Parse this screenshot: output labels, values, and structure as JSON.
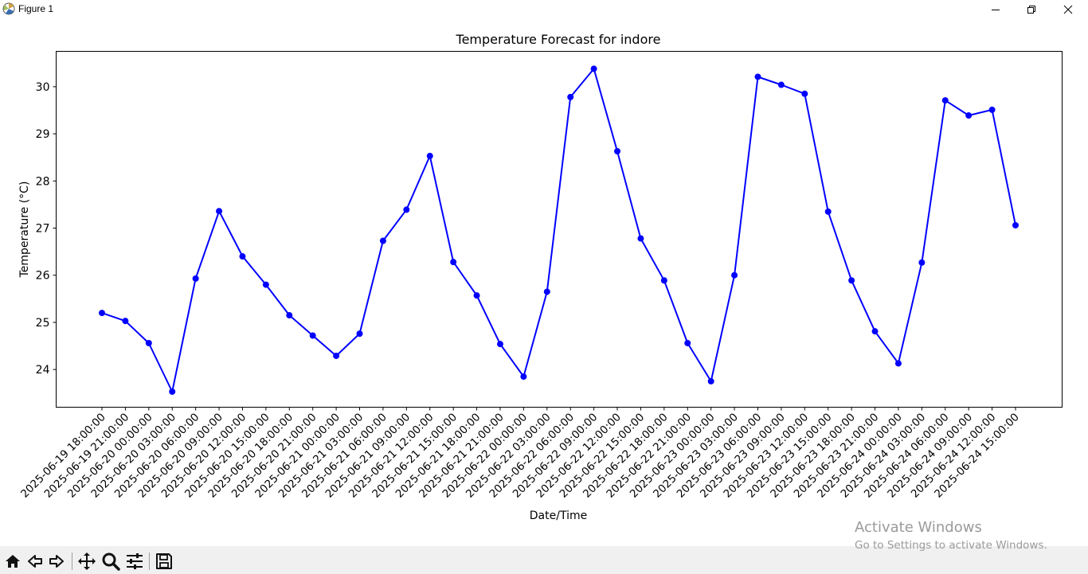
{
  "window": {
    "title": "Figure 1"
  },
  "chart_data": {
    "type": "line",
    "title": "Temperature Forecast for indore",
    "xlabel": "Date/Time",
    "ylabel": "Temperature (°C)",
    "x": [
      "2025-06-19 18:00:00",
      "2025-06-19 21:00:00",
      "2025-06-20 00:00:00",
      "2025-06-20 03:00:00",
      "2025-06-20 06:00:00",
      "2025-06-20 09:00:00",
      "2025-06-20 12:00:00",
      "2025-06-20 15:00:00",
      "2025-06-20 18:00:00",
      "2025-06-20 21:00:00",
      "2025-06-21 00:00:00",
      "2025-06-21 03:00:00",
      "2025-06-21 06:00:00",
      "2025-06-21 09:00:00",
      "2025-06-21 12:00:00",
      "2025-06-21 15:00:00",
      "2025-06-21 18:00:00",
      "2025-06-21 21:00:00",
      "2025-06-22 00:00:00",
      "2025-06-22 03:00:00",
      "2025-06-22 06:00:00",
      "2025-06-22 09:00:00",
      "2025-06-22 12:00:00",
      "2025-06-22 15:00:00",
      "2025-06-22 18:00:00",
      "2025-06-22 21:00:00",
      "2025-06-23 00:00:00",
      "2025-06-23 03:00:00",
      "2025-06-23 06:00:00",
      "2025-06-23 09:00:00",
      "2025-06-23 12:00:00",
      "2025-06-23 15:00:00",
      "2025-06-23 18:00:00",
      "2025-06-23 21:00:00",
      "2025-06-24 00:00:00",
      "2025-06-24 03:00:00",
      "2025-06-24 06:00:00",
      "2025-06-24 09:00:00",
      "2025-06-24 12:00:00",
      "2025-06-24 15:00:00"
    ],
    "series": [
      {
        "values": [
          25.2,
          25.03,
          24.56,
          23.53,
          25.93,
          27.36,
          26.4,
          25.8,
          25.15,
          24.72,
          24.29,
          24.76,
          26.73,
          27.39,
          28.53,
          26.28,
          25.57,
          24.54,
          23.85,
          25.65,
          29.78,
          30.38,
          28.63,
          26.78,
          25.89,
          24.56,
          23.75,
          26.0,
          30.21,
          30.04,
          29.85,
          27.35,
          25.89,
          24.81,
          24.13,
          26.27,
          29.71,
          29.39,
          29.51,
          27.06
        ]
      }
    ],
    "ylim": [
      23.2,
      30.75
    ],
    "yticks": [
      24,
      25,
      26,
      27,
      28,
      29,
      30
    ],
    "color": "#0000ff",
    "grid": false,
    "marker": "circle"
  },
  "toolbar": {
    "icons": [
      "home-icon",
      "back-arrow-icon",
      "forward-arrow-icon",
      "pan-icon",
      "zoom-icon",
      "configure-subplots-icon",
      "save-icon"
    ]
  },
  "watermark": {
    "line1": "Activate Windows",
    "line2": "Go to Settings to activate Windows."
  }
}
